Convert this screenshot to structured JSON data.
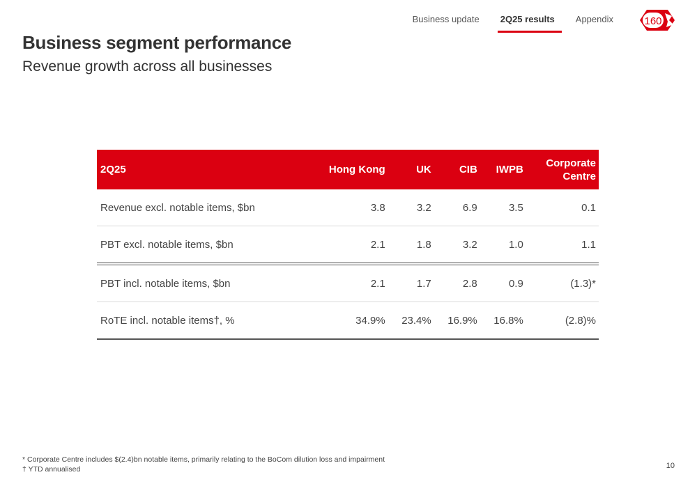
{
  "nav": {
    "tabs": [
      {
        "label": "Business update"
      },
      {
        "label": "2Q25 results"
      },
      {
        "label": "Appendix"
      }
    ],
    "active_index": 1,
    "logo_text": "160"
  },
  "header": {
    "title": "Business segment performance",
    "subtitle": "Revenue growth across all businesses"
  },
  "table": {
    "columns": [
      "2Q25",
      "Hong Kong",
      "UK",
      "CIB",
      "IWPB",
      "Corporate\nCentre"
    ],
    "rows": [
      [
        "Revenue excl. notable items, $bn",
        "3.8",
        "3.2",
        "6.9",
        "3.5",
        "0.1"
      ],
      [
        "PBT excl. notable items, $bn",
        "2.1",
        "1.8",
        "3.2",
        "1.0",
        "1.1"
      ],
      [
        "PBT incl. notable items, $bn",
        "2.1",
        "1.7",
        "2.8",
        "0.9",
        "(1.3)*"
      ],
      [
        "RoTE incl. notable items†, %",
        "34.9%",
        "23.4%",
        "16.9%",
        "16.8%",
        "(2.8)%"
      ]
    ]
  },
  "footnotes": [
    "* Corporate Centre includes $(2.4)bn notable items, primarily relating to the BoCom dilution loss and impairment",
    "† YTD annualised"
  ],
  "page_number": "10",
  "colors": {
    "accent": "#db0011"
  }
}
